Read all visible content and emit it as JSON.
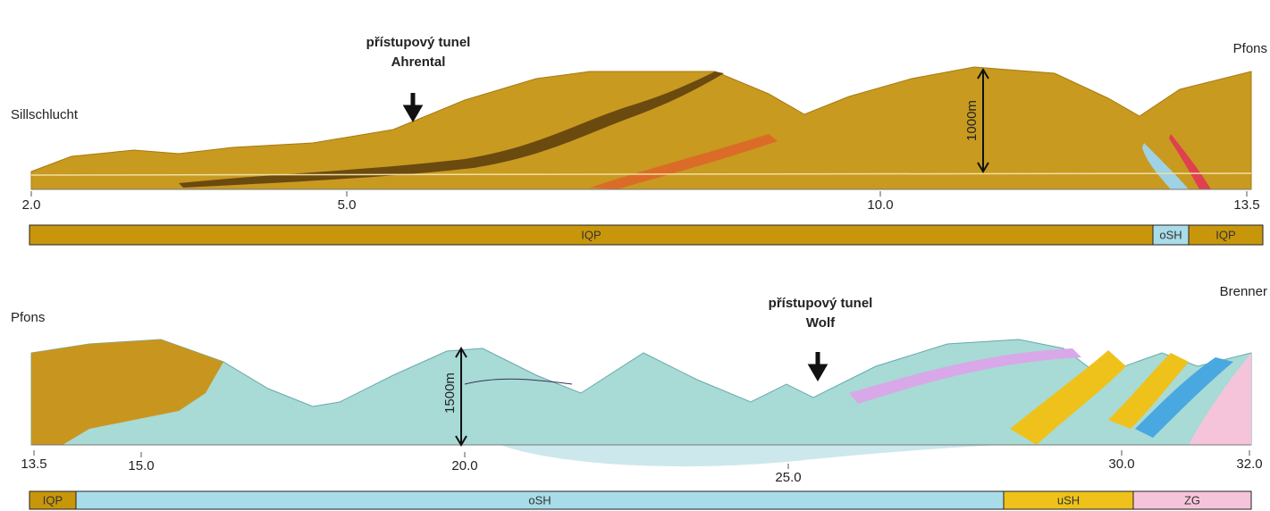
{
  "panels": [
    {
      "left_label": "Sillschlucht",
      "right_label": "Pfons",
      "tunnel_label": [
        "přístupový tunel",
        "Ahrental"
      ],
      "scale_label": "1000m",
      "ticks": [
        "2.0",
        "5.0",
        "10.0",
        "13.5"
      ],
      "units": [
        {
          "name": "IQP",
          "color": "#c8960a"
        },
        {
          "name": "oSH",
          "color": "#a8dce8"
        },
        {
          "name": "IQP",
          "color": "#c8960a"
        }
      ]
    },
    {
      "left_label": "Pfons",
      "right_label": "Brenner",
      "tunnel_label": [
        "přístupový tunel",
        "Wolf"
      ],
      "scale_label": "1500m",
      "ticks": [
        "13.5",
        "15.0",
        "20.0",
        "25.0",
        "30.0",
        "32.0"
      ],
      "units": [
        {
          "name": "IQP",
          "color": "#c8960a"
        },
        {
          "name": "oSH",
          "color": "#a8dce8"
        },
        {
          "name": "uSH",
          "color": "#eec21a"
        },
        {
          "name": "ZG",
          "color": "#f6c4da"
        }
      ]
    }
  ]
}
